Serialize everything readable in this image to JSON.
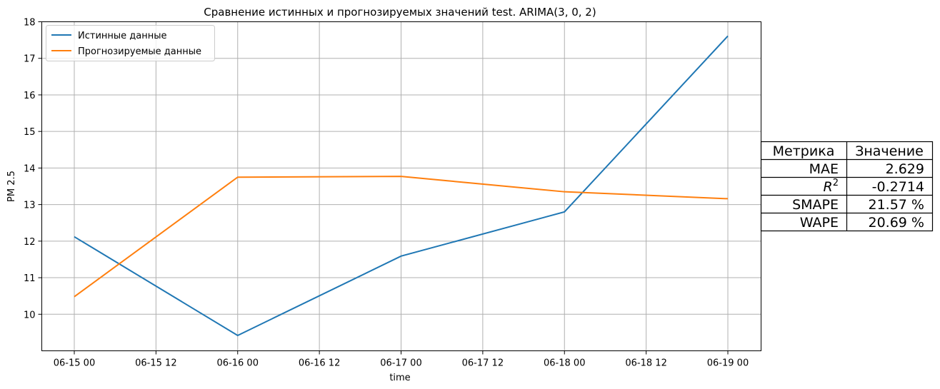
{
  "chart_data": {
    "type": "line",
    "title": "Сравнение истинных и прогнозируемых значений test. ARIMA(3, 0, 2)",
    "xlabel": "time",
    "ylabel": "PM 2.5",
    "x": [
      "06-15 00",
      "06-16 00",
      "06-17 00",
      "06-18 00",
      "06-19 00"
    ],
    "x_tick_labels": [
      "06-15 00",
      "06-15 12",
      "06-16 00",
      "06-16 12",
      "06-17 00",
      "06-17 12",
      "06-18 00",
      "06-18 12",
      "06-19 00"
    ],
    "y_ticks": [
      10,
      11,
      12,
      13,
      14,
      15,
      16,
      17,
      18
    ],
    "ylim": [
      9.0,
      18.0
    ],
    "grid": true,
    "legend_position": "upper-left",
    "series": [
      {
        "name": "Истинные данные",
        "color": "#1f77b4",
        "values": [
          12.12,
          9.42,
          11.59,
          12.8,
          17.61
        ]
      },
      {
        "name": "Прогнозируемые данные",
        "color": "#ff7f0e",
        "values": [
          10.48,
          13.75,
          13.77,
          13.35,
          13.16
        ]
      }
    ]
  },
  "metrics_table": {
    "headers": [
      "Метрика",
      "Значение"
    ],
    "rows": [
      {
        "metric": "MAE",
        "value": "2.629"
      },
      {
        "metric": "R^2",
        "value": "-0.2714"
      },
      {
        "metric": "SMAPE",
        "value": "21.57 %"
      },
      {
        "metric": "WAPE",
        "value": "20.69 %"
      }
    ]
  }
}
